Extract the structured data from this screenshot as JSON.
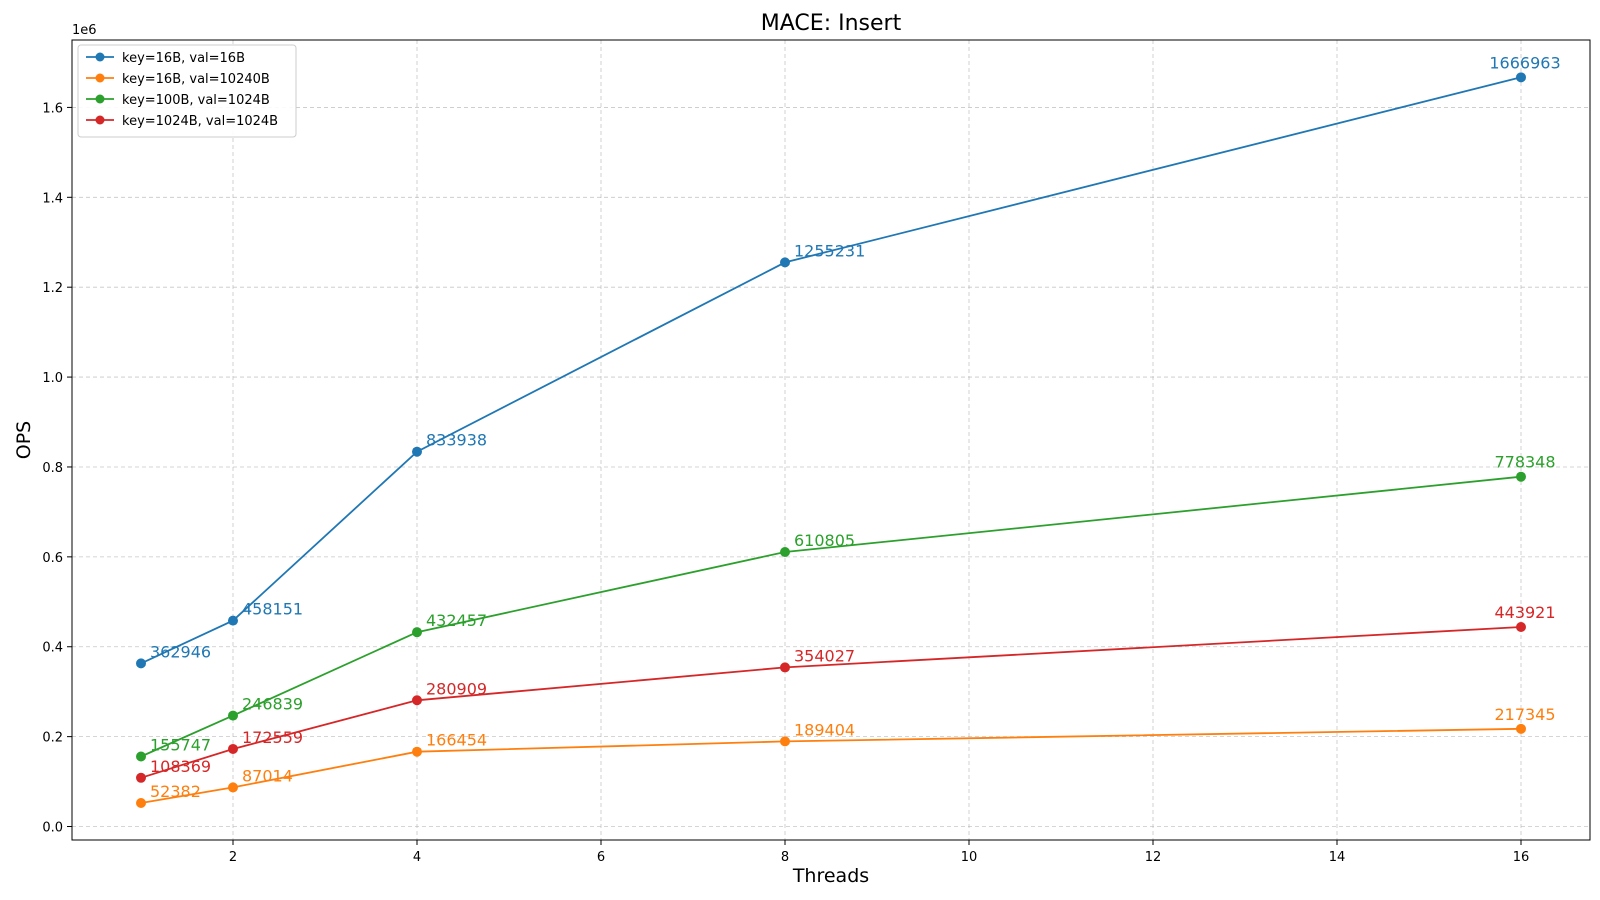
{
  "chart_data": {
    "type": "line",
    "title": "MACE: Insert",
    "xlabel": "Threads",
    "ylabel": "OPS",
    "y_offset_text": "1e6",
    "x": [
      1,
      2,
      4,
      8,
      16
    ],
    "xlim": [
      0.25,
      16.75
    ],
    "ylim": [
      -30000,
      1750000
    ],
    "x_ticks": [
      2,
      4,
      6,
      8,
      10,
      12,
      14,
      16
    ],
    "y_ticks": [
      0,
      200000,
      400000,
      600000,
      800000,
      1000000,
      1200000,
      1400000,
      1600000
    ],
    "y_tick_labels": [
      "0.0",
      "0.2",
      "0.4",
      "0.6",
      "0.8",
      "1.0",
      "1.2",
      "1.4",
      "1.6"
    ],
    "grid": true,
    "legend_position": "top-left",
    "series": [
      {
        "name": "key=16B, val=16B",
        "color": "#1f77b4",
        "values": [
          362946,
          458151,
          833938,
          1255231,
          1666963
        ]
      },
      {
        "name": "key=16B, val=10240B",
        "color": "#ff7f0e",
        "values": [
          52382,
          87014,
          166454,
          189404,
          217345
        ]
      },
      {
        "name": "key=100B, val=1024B",
        "color": "#2ca02c",
        "values": [
          155747,
          246839,
          432457,
          610805,
          778348
        ]
      },
      {
        "name": "key=1024B, val=1024B",
        "color": "#d62728",
        "values": [
          108369,
          172559,
          280909,
          354027,
          443921
        ]
      }
    ]
  }
}
